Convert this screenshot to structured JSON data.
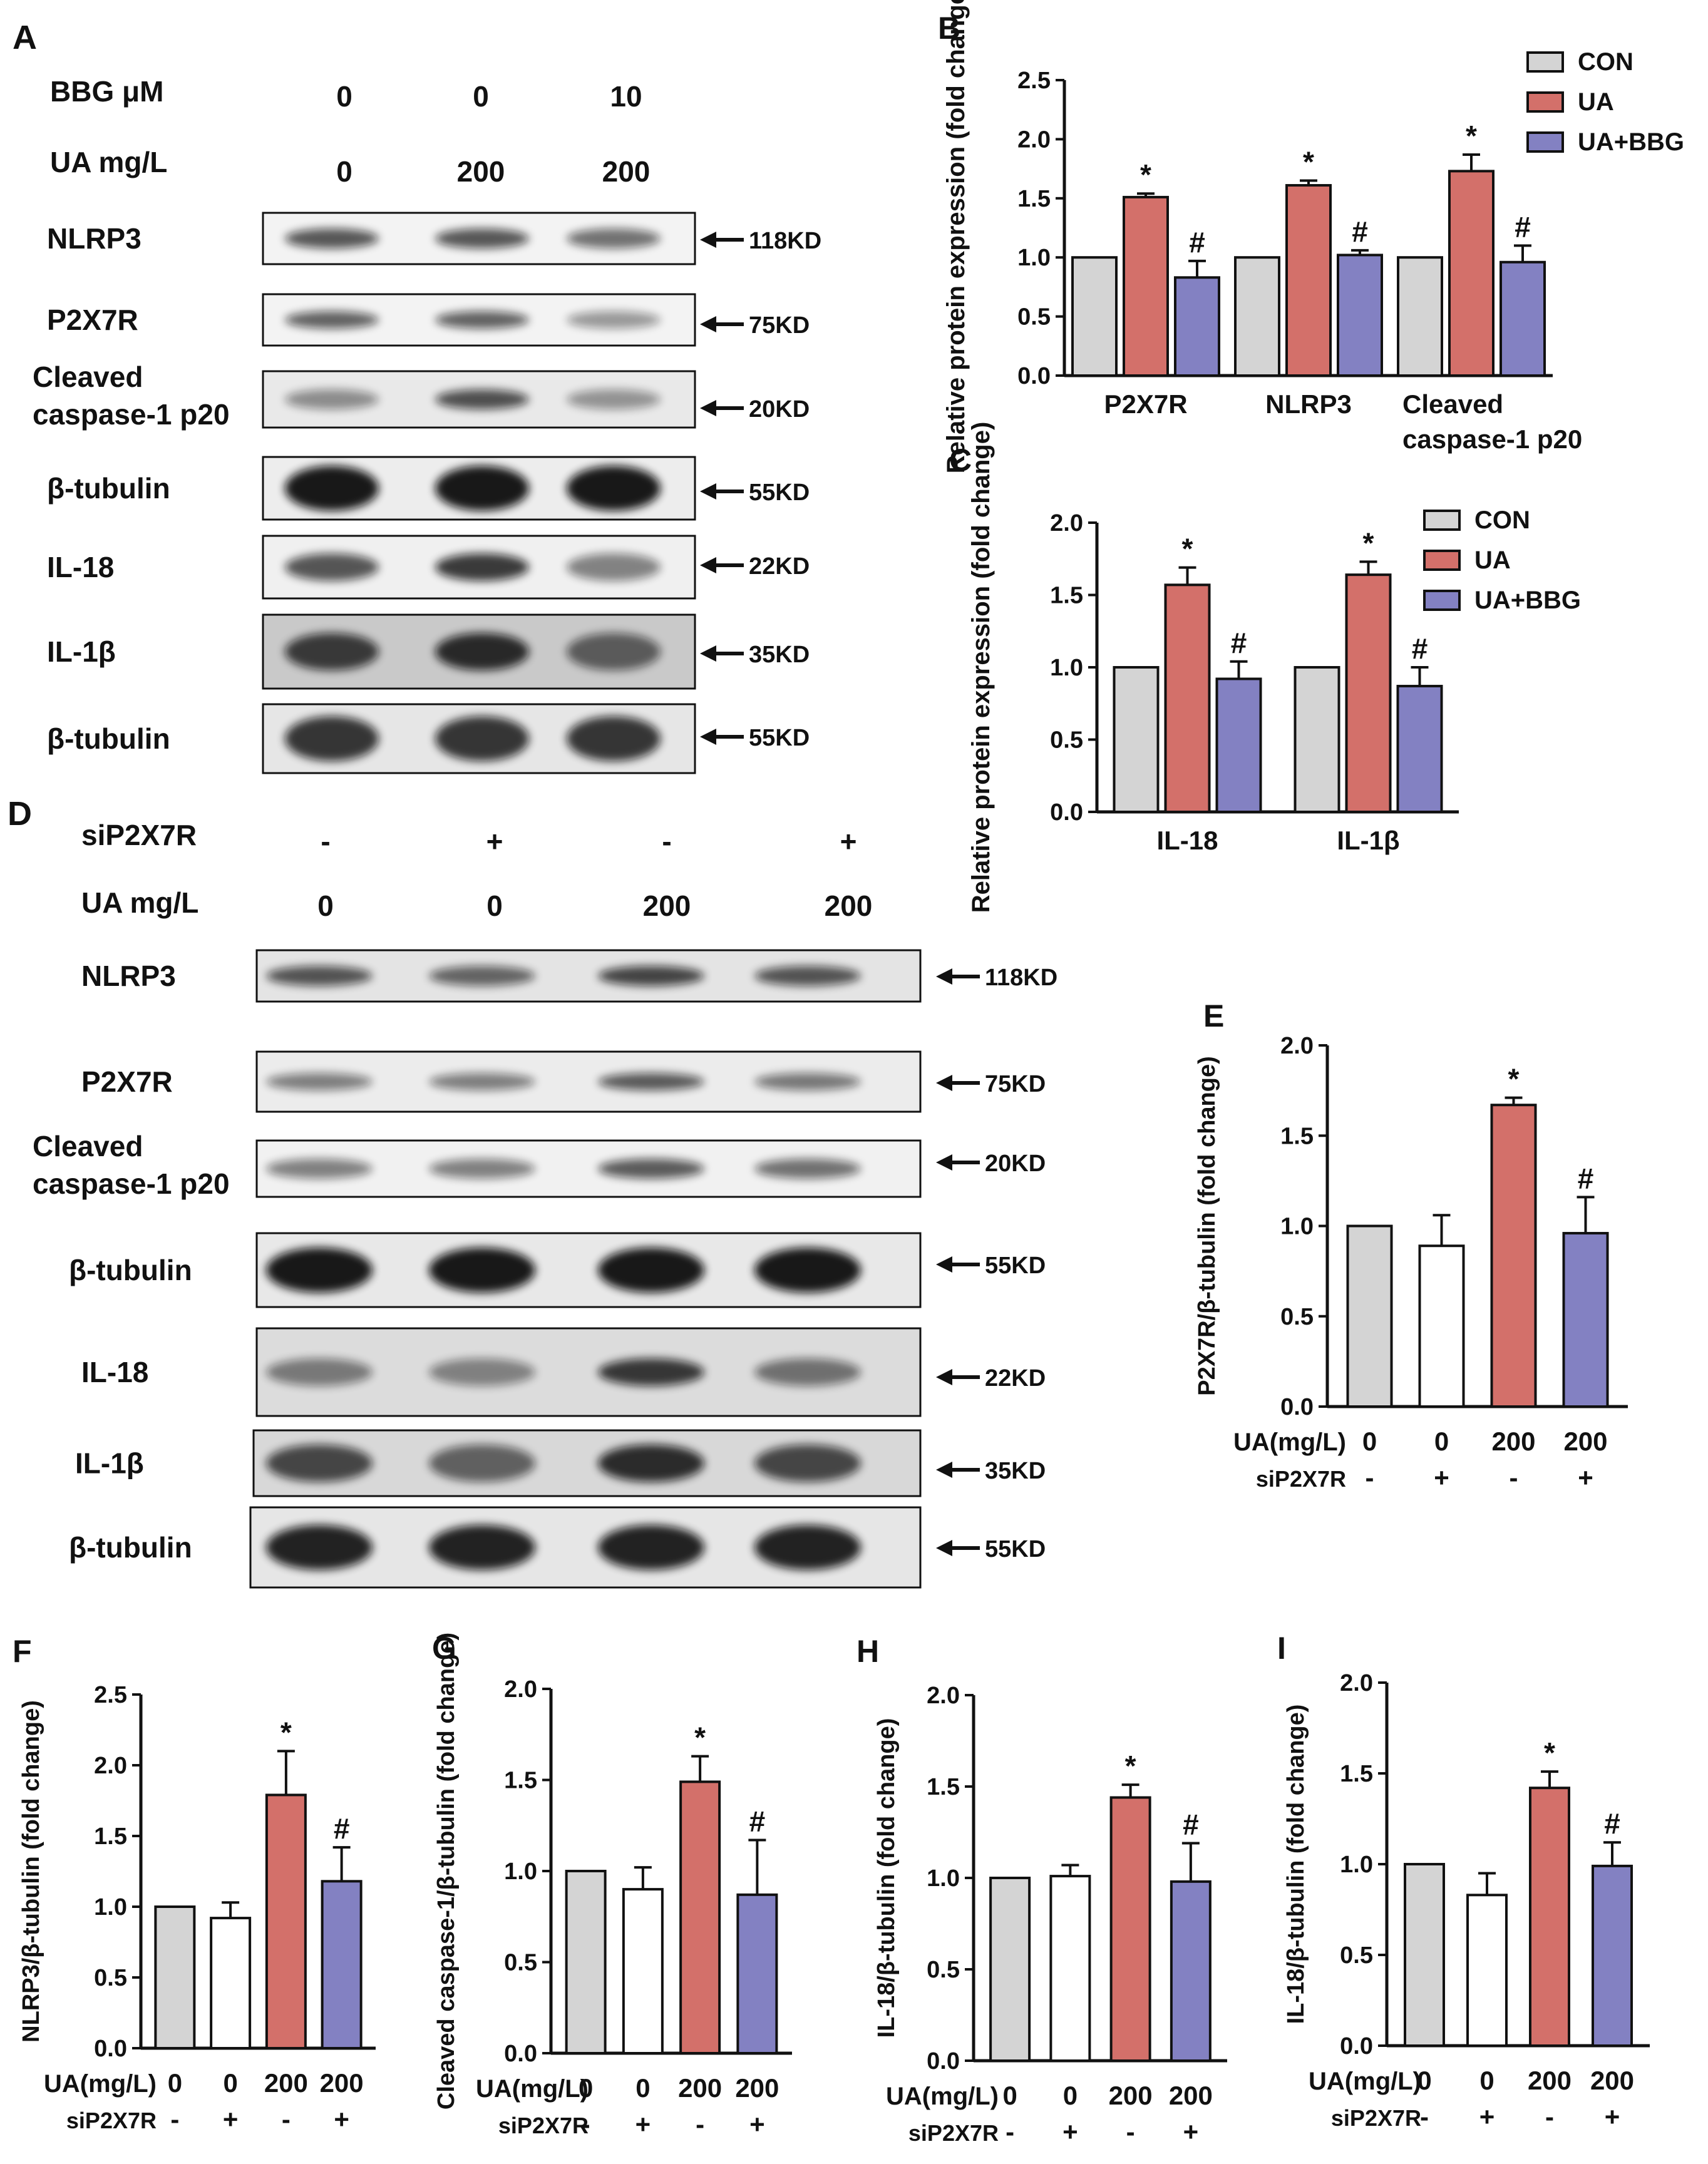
{
  "panel_letters": {
    "A": "A",
    "B": "B",
    "C": "C",
    "D": "D",
    "E": "E",
    "F": "F",
    "G": "G",
    "H": "H",
    "I": "I"
  },
  "colors": {
    "CON": "#d4d4d4",
    "UA": "#d3706a",
    "UA+BBG": "#8381c2",
    "siCtrl": "#ffffff",
    "axis": "#111111"
  },
  "blot_A": {
    "header_rows": [
      {
        "label": "BBG μM",
        "values": [
          "0",
          "0",
          "10"
        ]
      },
      {
        "label": "UA mg/L",
        "values": [
          "0",
          "200",
          "200"
        ]
      }
    ],
    "rows": [
      {
        "protein": "NLRP3",
        "kd": "118KD"
      },
      {
        "protein": "P2X7R",
        "kd": "75KD"
      },
      {
        "protein": "Cleaved caspase-1 p20",
        "kd": "20KD"
      },
      {
        "protein": "β-tubulin",
        "kd": "55KD"
      },
      {
        "protein": "IL-18",
        "kd": "22KD"
      },
      {
        "protein": "IL-1β",
        "kd": "35KD"
      },
      {
        "protein": "β-tubulin",
        "kd": "55KD"
      }
    ]
  },
  "blot_D": {
    "header_rows": [
      {
        "label": "siP2X7R",
        "values": [
          "-",
          "+",
          "-",
          "+"
        ]
      },
      {
        "label": "UA mg/L",
        "values": [
          "0",
          "0",
          "200",
          "200"
        ]
      }
    ],
    "rows": [
      {
        "protein": "NLRP3",
        "kd": "118KD"
      },
      {
        "protein": "P2X7R",
        "kd": "75KD"
      },
      {
        "protein": "Cleaved caspase-1 p20",
        "kd": "20KD"
      },
      {
        "protein": "β-tubulin",
        "kd": "55KD"
      },
      {
        "protein": "IL-18",
        "kd": "22KD"
      },
      {
        "protein": "IL-1β",
        "kd": "35KD"
      },
      {
        "protein": "β-tubulin",
        "kd": "55KD"
      }
    ]
  },
  "chart_data": [
    {
      "panel": "B",
      "type": "bar",
      "ylabel": "Relative protein expression (fold change)",
      "ylim": [
        0,
        2.5
      ],
      "yticks": [
        "0.0",
        "0.5",
        "1.0",
        "1.5",
        "2.0",
        "2.5"
      ],
      "categories": [
        "P2X7R",
        "NLRP3",
        "Cleaved caspase-1 p20"
      ],
      "legend_position": "top-right",
      "series": [
        {
          "name": "CON",
          "values": [
            1.0,
            1.0,
            1.0
          ],
          "errors": [
            0,
            0,
            0
          ],
          "marks": [
            "",
            "",
            ""
          ]
        },
        {
          "name": "UA",
          "values": [
            1.51,
            1.61,
            1.73
          ],
          "errors": [
            0.03,
            0.04,
            0.14
          ],
          "marks": [
            "*",
            "*",
            "*"
          ]
        },
        {
          "name": "UA+BBG",
          "values": [
            0.83,
            1.02,
            0.96
          ],
          "errors": [
            0.14,
            0.04,
            0.14
          ],
          "marks": [
            "#",
            "#",
            "#"
          ]
        }
      ]
    },
    {
      "panel": "C",
      "type": "bar",
      "ylabel": "Relative protein expression (fold change)",
      "ylim": [
        0,
        2.0
      ],
      "yticks": [
        "0.0",
        "0.5",
        "1.0",
        "1.5",
        "2.0"
      ],
      "categories": [
        "IL-18",
        "IL-1β"
      ],
      "legend_position": "top-right",
      "series": [
        {
          "name": "CON",
          "values": [
            1.0,
            1.0
          ],
          "errors": [
            0,
            0
          ],
          "marks": [
            "",
            ""
          ]
        },
        {
          "name": "UA",
          "values": [
            1.57,
            1.64
          ],
          "errors": [
            0.12,
            0.09
          ],
          "marks": [
            "*",
            "*"
          ]
        },
        {
          "name": "UA+BBG",
          "values": [
            0.92,
            0.87
          ],
          "errors": [
            0.12,
            0.13
          ],
          "marks": [
            "#",
            "#"
          ]
        }
      ]
    },
    {
      "panel": "E",
      "type": "bar",
      "ylabel": "P2X7R/β-tubulin (fold change)",
      "ylim": [
        0,
        2.0
      ],
      "yticks": [
        "0.0",
        "0.5",
        "1.0",
        "1.5",
        "2.0"
      ],
      "row_labels": [
        "UA(mg/L)",
        "siP2X7R"
      ],
      "ua": [
        "0",
        "0",
        "200",
        "200"
      ],
      "si": [
        "-",
        "+",
        "-",
        "+"
      ],
      "values": [
        1.0,
        0.89,
        1.67,
        0.96
      ],
      "errors": [
        0,
        0.17,
        0.04,
        0.2
      ],
      "marks": [
        "",
        "",
        "*",
        "#"
      ]
    },
    {
      "panel": "F",
      "type": "bar",
      "ylabel": "NLRP3/β-tubulin (fold change)",
      "ylim": [
        0,
        2.5
      ],
      "yticks": [
        "0.0",
        "0.5",
        "1.0",
        "1.5",
        "2.0",
        "2.5"
      ],
      "row_labels": [
        "UA(mg/L)",
        "siP2X7R"
      ],
      "ua": [
        "0",
        "0",
        "200",
        "200"
      ],
      "si": [
        "-",
        "+",
        "-",
        "+"
      ],
      "values": [
        1.0,
        0.92,
        1.79,
        1.18
      ],
      "errors": [
        0,
        0.11,
        0.31,
        0.24
      ],
      "marks": [
        "",
        "",
        "*",
        "#"
      ]
    },
    {
      "panel": "G",
      "type": "bar",
      "ylabel": "Cleaved caspase-1/β-tubulin (fold change)",
      "ylim": [
        0,
        2.0
      ],
      "yticks": [
        "0.0",
        "0.5",
        "1.0",
        "1.5",
        "2.0"
      ],
      "row_labels": [
        "UA(mg/L)",
        "siP2X7R"
      ],
      "ua": [
        "0",
        "0",
        "200",
        "200"
      ],
      "si": [
        "-",
        "+",
        "-",
        "+"
      ],
      "values": [
        1.0,
        0.9,
        1.49,
        0.87
      ],
      "errors": [
        0,
        0.12,
        0.14,
        0.3
      ],
      "marks": [
        "",
        "",
        "*",
        "#"
      ]
    },
    {
      "panel": "H",
      "type": "bar",
      "ylabel": "IL-18/β-tubulin (fold change)",
      "ylim": [
        0,
        2.0
      ],
      "yticks": [
        "0.0",
        "0.5",
        "1.0",
        "1.5",
        "2.0"
      ],
      "row_labels": [
        "UA(mg/L)",
        "siP2X7R"
      ],
      "ua": [
        "0",
        "0",
        "200",
        "200"
      ],
      "si": [
        "-",
        "+",
        "-",
        "+"
      ],
      "values": [
        1.0,
        1.01,
        1.44,
        0.98
      ],
      "errors": [
        0,
        0.06,
        0.07,
        0.21
      ],
      "marks": [
        "",
        "",
        "*",
        "#"
      ]
    },
    {
      "panel": "I",
      "type": "bar",
      "ylabel": "IL-18/β-tubulin (fold change)",
      "ylim": [
        0,
        2.0
      ],
      "yticks": [
        "0.0",
        "0.5",
        "1.0",
        "1.5",
        "2.0"
      ],
      "row_labels": [
        "UA(mg/L)",
        "siP2X7R"
      ],
      "ua": [
        "0",
        "0",
        "200",
        "200"
      ],
      "si": [
        "-",
        "+",
        "-",
        "+"
      ],
      "values": [
        1.0,
        0.83,
        1.42,
        0.99
      ],
      "errors": [
        0,
        0.12,
        0.09,
        0.13
      ],
      "marks": [
        "",
        "",
        "*",
        "#"
      ]
    }
  ]
}
